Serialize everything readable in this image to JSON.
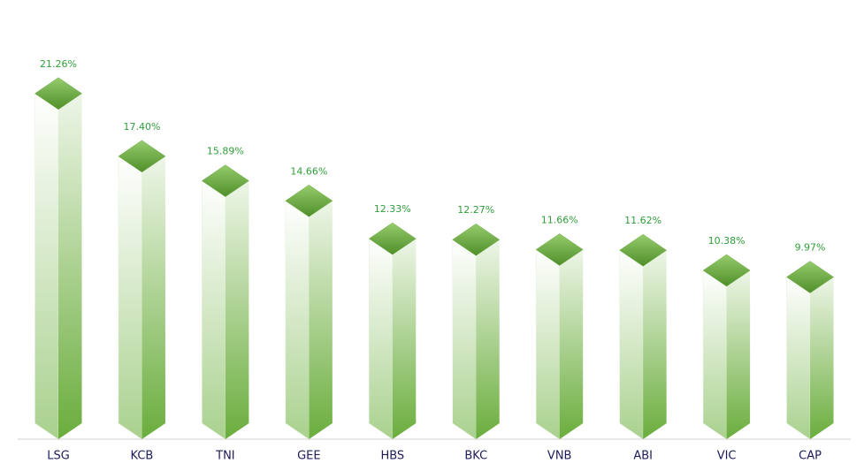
{
  "chart_data": {
    "type": "bar",
    "categories": [
      "LSG",
      "KCB",
      "TNI",
      "GEE",
      "HBS",
      "BKC",
      "VNB",
      "ABI",
      "VIC",
      "CAP"
    ],
    "values": [
      21.26,
      17.4,
      15.89,
      14.66,
      12.33,
      12.27,
      11.66,
      11.62,
      10.38,
      9.97
    ],
    "value_labels": [
      "21.26%",
      "17.40%",
      "15.89%",
      "14.66%",
      "12.33%",
      "12.27%",
      "11.66%",
      "11.62%",
      "10.38%",
      "9.97%"
    ],
    "color": "#70ad47"
  }
}
